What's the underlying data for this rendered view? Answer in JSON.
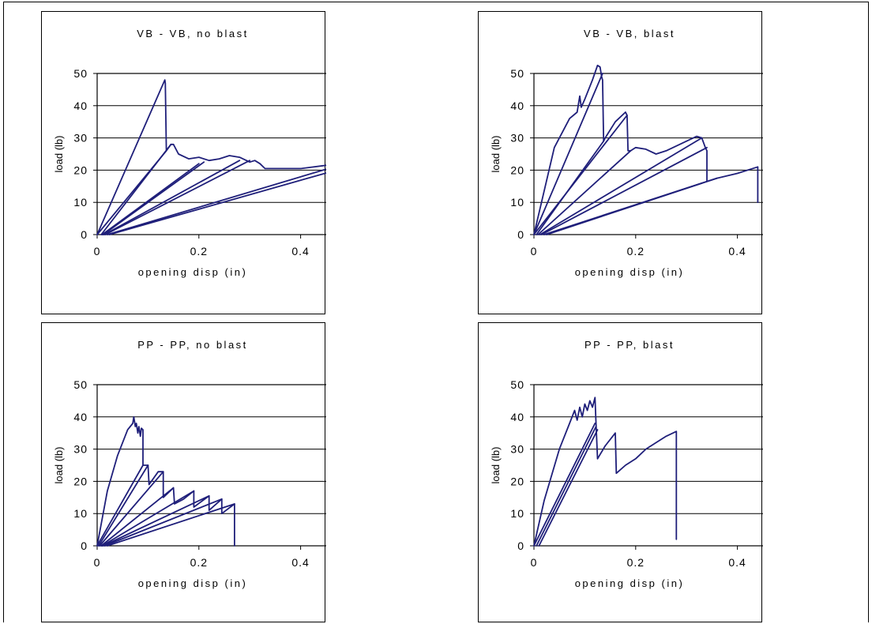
{
  "chart_data": [
    {
      "type": "line",
      "title": "VB - VB, no blast",
      "xlabel": "opening disp (in)",
      "ylabel": "load (lb)",
      "xlim": [
        0,
        0.5
      ],
      "ylim": [
        0,
        50
      ],
      "xticks": [
        "0",
        "0.2",
        "0.4"
      ],
      "xtick_values": [
        0,
        0.2,
        0.4
      ],
      "yticks": [
        "0",
        "10",
        "20",
        "30",
        "40",
        "50"
      ],
      "ytick_values": [
        0,
        10,
        20,
        30,
        40,
        50
      ],
      "grid": "horizontal",
      "color": "#1f1f7a",
      "series": [
        {
          "x": [
            0,
            0.133,
            0.134,
            0.136,
            0.145,
            0.15,
            0.16,
            0.18,
            0.2,
            0.22,
            0.24,
            0.26,
            0.28,
            0.3,
            0.31,
            0.32,
            0.33,
            0.35,
            0.4,
            0.45,
            0.465,
            0.47,
            0.473,
            0.473
          ],
          "y": [
            0,
            48,
            47,
            26,
            28,
            28,
            25,
            23.5,
            24,
            23,
            23.5,
            24.5,
            24,
            22.5,
            23,
            22,
            20.5,
            20.5,
            20.5,
            21.5,
            21,
            20,
            20,
            0
          ]
        },
        {
          "x": [
            0,
            0.136
          ],
          "y": [
            0,
            26
          ]
        },
        {
          "x": [
            0.008,
            0.145
          ],
          "y": [
            0,
            28
          ]
        },
        {
          "x": [
            0.01,
            0.2
          ],
          "y": [
            0,
            22
          ]
        },
        {
          "x": [
            0.012,
            0.21
          ],
          "y": [
            0,
            22.5
          ]
        },
        {
          "x": [
            0.014,
            0.28
          ],
          "y": [
            0,
            23
          ]
        },
        {
          "x": [
            0.016,
            0.3
          ],
          "y": [
            0,
            23
          ]
        },
        {
          "x": [
            0.02,
            0.465
          ],
          "y": [
            0,
            21
          ]
        },
        {
          "x": [
            0.024,
            0.47
          ],
          "y": [
            0,
            20
          ]
        }
      ]
    },
    {
      "type": "line",
      "title": "VB - VB, blast",
      "xlabel": "opening disp (in)",
      "ylabel": "load (lb)",
      "xlim": [
        0,
        0.5
      ],
      "ylim": [
        0,
        50
      ],
      "xticks": [
        "0",
        "0.2",
        "0.4"
      ],
      "xtick_values": [
        0,
        0.2,
        0.4
      ],
      "yticks": [
        "0",
        "10",
        "20",
        "30",
        "40",
        "50"
      ],
      "ytick_values": [
        0,
        10,
        20,
        30,
        40,
        50
      ],
      "grid": "horizontal",
      "color": "#1f1f7a",
      "series": [
        {
          "x": [
            0,
            0.04,
            0.07,
            0.085,
            0.09,
            0.093,
            0.1,
            0.115,
            0.125,
            0.13,
            0.133,
            0.135,
            0.137,
            0.14,
            0.16,
            0.18,
            0.183,
            0.185,
            0.19,
            0.2,
            0.22,
            0.24,
            0.26,
            0.28,
            0.3,
            0.32,
            0.33,
            0.337,
            0.34,
            0.34,
            0.36,
            0.4,
            0.44,
            0.44,
            0.44
          ],
          "y": [
            0,
            27,
            36,
            38,
            43,
            39.5,
            42,
            48,
            52.5,
            52,
            49,
            48,
            29,
            30,
            35,
            38,
            37,
            26,
            26,
            27,
            26.5,
            25,
            26,
            27.5,
            29,
            30.5,
            30,
            27,
            26,
            16.5,
            17.5,
            19,
            21,
            21,
            10
          ]
        },
        {
          "x": [
            0,
            0.135
          ],
          "y": [
            0,
            50
          ]
        },
        {
          "x": [
            0,
            0.183
          ],
          "y": [
            0,
            37
          ]
        },
        {
          "x": [
            0.005,
            0.137
          ],
          "y": [
            0,
            29
          ]
        },
        {
          "x": [
            0.008,
            0.19
          ],
          "y": [
            0,
            26
          ]
        },
        {
          "x": [
            0.012,
            0.33
          ],
          "y": [
            0,
            30
          ]
        },
        {
          "x": [
            0.015,
            0.34
          ],
          "y": [
            0,
            27
          ]
        },
        {
          "x": [
            0.02,
            0.34
          ],
          "y": [
            0,
            16.5
          ]
        },
        {
          "x": [
            0.025,
            0.36
          ],
          "y": [
            0,
            17.5
          ]
        }
      ]
    },
    {
      "type": "line",
      "title": "PP - PP, no blast",
      "xlabel": "opening disp (in)",
      "ylabel": "load (lb)",
      "xlim": [
        0,
        0.5
      ],
      "ylim": [
        0,
        50
      ],
      "xticks": [
        "0",
        "0.2",
        "0.4"
      ],
      "xtick_values": [
        0,
        0.2,
        0.4
      ],
      "yticks": [
        "0",
        "10",
        "20",
        "30",
        "40",
        "50"
      ],
      "ytick_values": [
        0,
        10,
        20,
        30,
        40,
        50
      ],
      "grid": "horizontal",
      "color": "#1f1f7a",
      "series": [
        {
          "x": [
            0,
            0.02,
            0.04,
            0.06,
            0.07,
            0.072,
            0.075,
            0.077,
            0.08,
            0.082,
            0.085,
            0.087,
            0.09,
            0.09,
            0.1,
            0.102,
            0.12,
            0.13,
            0.13,
            0.15,
            0.152,
            0.17,
            0.19,
            0.19,
            0.22,
            0.22,
            0.245,
            0.245,
            0.27,
            0.27
          ],
          "y": [
            0,
            17,
            28,
            36,
            38,
            40,
            37,
            38,
            35,
            37,
            34,
            36.5,
            36,
            25,
            25,
            19,
            23,
            23,
            15,
            18,
            13,
            14.5,
            17,
            12,
            15.5,
            11,
            14.5,
            10,
            13,
            0
          ]
        },
        {
          "x": [
            0,
            0.09
          ],
          "y": [
            0,
            25
          ]
        },
        {
          "x": [
            0.003,
            0.1
          ],
          "y": [
            0,
            25
          ]
        },
        {
          "x": [
            0.005,
            0.13
          ],
          "y": [
            0,
            23
          ]
        },
        {
          "x": [
            0.008,
            0.15
          ],
          "y": [
            0,
            18
          ]
        },
        {
          "x": [
            0.01,
            0.19
          ],
          "y": [
            0,
            17
          ]
        },
        {
          "x": [
            0.012,
            0.22
          ],
          "y": [
            0,
            15.5
          ]
        },
        {
          "x": [
            0.015,
            0.245
          ],
          "y": [
            0,
            14.5
          ]
        },
        {
          "x": [
            0.02,
            0.27
          ],
          "y": [
            0,
            13
          ]
        }
      ]
    },
    {
      "type": "line",
      "title": "PP - PP, blast",
      "xlabel": "opening disp (in)",
      "ylabel": "load (lb)",
      "xlim": [
        0,
        0.5
      ],
      "ylim": [
        0,
        50
      ],
      "xticks": [
        "0",
        "0.2",
        "0.4"
      ],
      "xtick_values": [
        0,
        0.2,
        0.4
      ],
      "yticks": [
        "0",
        "10",
        "20",
        "30",
        "40",
        "50"
      ],
      "ytick_values": [
        0,
        10,
        20,
        30,
        40,
        50
      ],
      "grid": "horizontal",
      "color": "#1f1f7a",
      "series": [
        {
          "x": [
            0,
            0.02,
            0.05,
            0.07,
            0.08,
            0.085,
            0.09,
            0.095,
            0.1,
            0.105,
            0.11,
            0.115,
            0.12,
            0.122,
            0.125,
            0.14,
            0.16,
            0.162,
            0.18,
            0.2,
            0.22,
            0.24,
            0.26,
            0.28,
            0.28
          ],
          "y": [
            0,
            14,
            30,
            38,
            42,
            39,
            43,
            40,
            44,
            42,
            45,
            43,
            46,
            38,
            27,
            31,
            35,
            22.5,
            25,
            27,
            30,
            32,
            34,
            35.5,
            2
          ]
        },
        {
          "x": [
            0,
            0.12
          ],
          "y": [
            0,
            38
          ]
        },
        {
          "x": [
            0.005,
            0.122
          ],
          "y": [
            0,
            37
          ]
        },
        {
          "x": [
            0.01,
            0.125
          ],
          "y": [
            0,
            36
          ]
        }
      ]
    }
  ]
}
